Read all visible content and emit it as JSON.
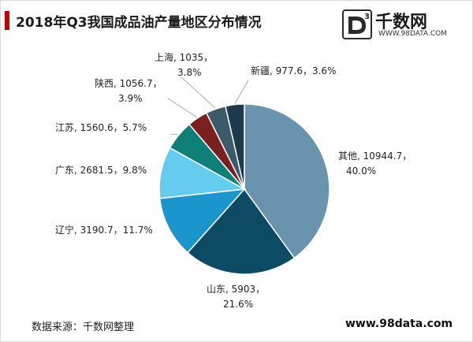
{
  "title": "2018年Q3我国成品油产量地区分布情况",
  "logo": {
    "mark": "3",
    "name": "千数网",
    "url": "WWW.98DATA.COM"
  },
  "source": "数据来源：千数网整理",
  "site": "www.98data.com",
  "colors": {
    "accent": "#c00000",
    "slices": [
      "#6a93ad",
      "#0d4a63",
      "#1b95cc",
      "#66ccef",
      "#0e8078",
      "#7a2020",
      "#3d5a6a",
      "#1e3a4c"
    ]
  },
  "chart_data": {
    "type": "pie",
    "title": "2018年Q3我国成品油产量地区分布情况",
    "start_angle_deg": 0,
    "direction": "clockwise",
    "slices": [
      {
        "name": "其他",
        "value": 10944.7,
        "percent": "40.0%",
        "line1": "其他, 10944.7，",
        "line2": "40.0%"
      },
      {
        "name": "山东",
        "value": 5903,
        "percent": "21.6%",
        "line1": "山东, 5903，",
        "line2": "21.6%"
      },
      {
        "name": "辽宁",
        "value": 3190.7,
        "percent": "11.7%",
        "line1": "辽宁, 3190.7，11.7%",
        "line2": ""
      },
      {
        "name": "广东",
        "value": 2681.5,
        "percent": "9.8%",
        "line1": "广东, 2681.5，9.8%",
        "line2": ""
      },
      {
        "name": "江苏",
        "value": 1560.6,
        "percent": "5.7%",
        "line1": "江苏, 1560.6，5.7%",
        "line2": ""
      },
      {
        "name": "陕西",
        "value": 1056.7,
        "percent": "3.9%",
        "line1": "陕西, 1056.7，",
        "line2": "3.9%"
      },
      {
        "name": "上海",
        "value": 1035,
        "percent": "3.8%",
        "line1": "上海, 1035，",
        "line2": "3.8%"
      },
      {
        "name": "新疆",
        "value": 977.6,
        "percent": "3.6%",
        "line1": "新疆, 977.6，3.6%",
        "line2": ""
      }
    ]
  }
}
